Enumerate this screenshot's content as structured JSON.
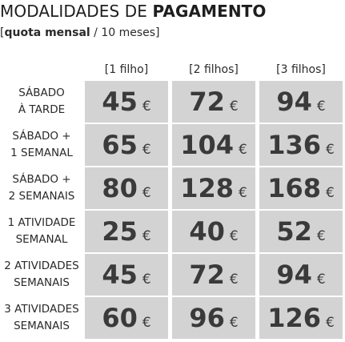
{
  "title": {
    "prefix": "MODALIDADES DE ",
    "bold": "PAGAMENTO"
  },
  "subtitle": {
    "open": "[",
    "bold": "quota mensal",
    "rest": " / 10 meses]"
  },
  "columns": [
    "[1 filho]",
    "[2 filhos]",
    "[3 filhos]"
  ],
  "currency": "€",
  "rows": [
    {
      "label_line1": "SÁBADO",
      "label_line2": "À TARDE",
      "prices": [
        "45",
        "72",
        "94"
      ]
    },
    {
      "label_line1": "SÁBADO +",
      "label_line2": "1 SEMANAL",
      "prices": [
        "65",
        "104",
        "136"
      ]
    },
    {
      "label_line1": "SÁBADO +",
      "label_line2": "2 SEMANAIS",
      "prices": [
        "80",
        "128",
        "168"
      ]
    },
    {
      "label_line1": "1 ATIVIDADE",
      "label_line2": "SEMANAL",
      "prices": [
        "25",
        "40",
        "52"
      ]
    },
    {
      "label_line1": "2 ATIVIDADES",
      "label_line2": "SEMANAIS",
      "prices": [
        "45",
        "72",
        "94"
      ]
    },
    {
      "label_line1": "3 ATIVIDADES",
      "label_line2": "SEMANAIS",
      "prices": [
        "60",
        "96",
        "126"
      ]
    }
  ],
  "colors": {
    "cell_background": "#d3d3d3",
    "price_text": "#3a3a3a"
  }
}
